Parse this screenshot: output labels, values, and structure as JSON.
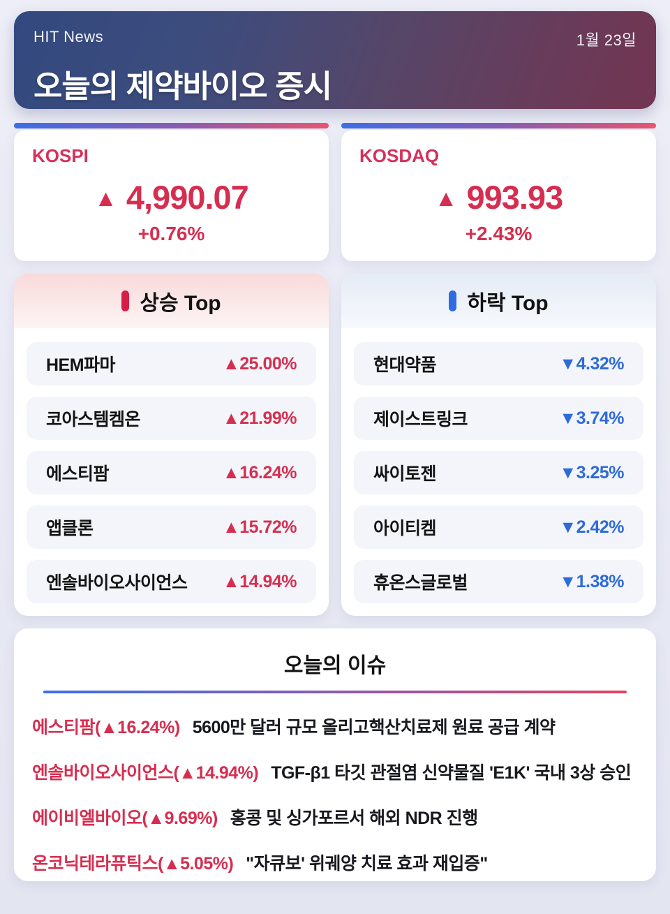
{
  "header": {
    "brand": "HIT News",
    "date": "1월 23일",
    "title": "오늘의 제약바이오 증시"
  },
  "indices": [
    {
      "name": "KOSPI",
      "arrow": "▲",
      "value": "4,990.07",
      "change": "+0.76%"
    },
    {
      "name": "KOSDAQ",
      "arrow": "▲",
      "value": "993.93",
      "change": "+2.43%"
    }
  ],
  "gainers": {
    "title": "상승 Top",
    "items": [
      {
        "name": "HEM파마",
        "change": "▲25.00%"
      },
      {
        "name": "코아스템켐온",
        "change": "▲21.99%"
      },
      {
        "name": "에스티팜",
        "change": "▲16.24%"
      },
      {
        "name": "앱클론",
        "change": "▲15.72%"
      },
      {
        "name": "엔솔바이오사이언스",
        "change": "▲14.94%"
      }
    ]
  },
  "losers": {
    "title": "하락 Top",
    "items": [
      {
        "name": "현대약품",
        "change": "▼4.32%"
      },
      {
        "name": "제이스트링크",
        "change": "▼3.74%"
      },
      {
        "name": "싸이토젠",
        "change": "▼3.25%"
      },
      {
        "name": "아이티켐",
        "change": "▼2.42%"
      },
      {
        "name": "휴온스글로벌",
        "change": "▼1.38%"
      }
    ]
  },
  "issues": {
    "title": "오늘의 이슈",
    "items": [
      {
        "company": "에스티팜(▲16.24%)",
        "headline": "5600만 달러 규모 올리고핵산치료제 원료 공급 계약"
      },
      {
        "company": "엔솔바이오사이언스(▲14.94%)",
        "headline": "TGF-β1 타깃 관절염 신약물질 'E1K' 국내 3상 승인"
      },
      {
        "company": "에이비엘바이오(▲9.69%)",
        "headline": "홍콩 및 싱가포르서 해외 NDR 진행"
      },
      {
        "company": "온코닉테라퓨틱스(▲5.05%)",
        "headline": "\"자큐보' 위궤양 치료 효과 재입증\""
      }
    ]
  },
  "colors": {
    "up_red": "#d62e50",
    "down_blue": "#2e6bd8",
    "accent_blue": "#3c6fe8",
    "accent_red": "#e85671",
    "header_gradient_start": "#32497f",
    "header_gradient_end": "#723551"
  }
}
